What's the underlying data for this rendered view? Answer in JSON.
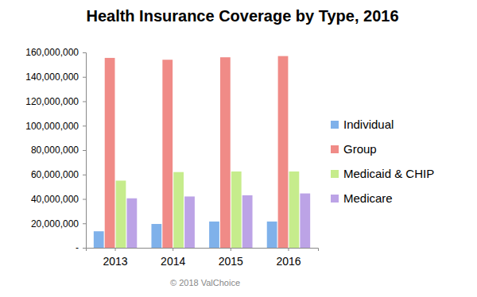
{
  "chart_data": {
    "type": "bar",
    "title": "Health Insurance Coverage by Type, 2016",
    "categories": [
      "2013",
      "2014",
      "2015",
      "2016"
    ],
    "series": [
      {
        "name": "Individual",
        "color": "#7fb1ea",
        "values": [
          13500000,
          19500000,
          21500000,
          21500000
        ]
      },
      {
        "name": "Group",
        "color": "#f08b87",
        "values": [
          155500000,
          154000000,
          156000000,
          157000000
        ]
      },
      {
        "name": "Medicaid & CHIP",
        "color": "#c6ec8c",
        "values": [
          55000000,
          62000000,
          62500000,
          62500000
        ]
      },
      {
        "name": "Medicare",
        "color": "#bca3e6",
        "values": [
          40500000,
          42000000,
          43000000,
          44500000
        ]
      }
    ],
    "ylim": [
      0,
      160000000
    ],
    "yticks": [
      {
        "value": 0,
        "label": "-"
      },
      {
        "value": 20000000,
        "label": "20,000,000"
      },
      {
        "value": 40000000,
        "label": "40,000,000"
      },
      {
        "value": 60000000,
        "label": "60,000,000"
      },
      {
        "value": 80000000,
        "label": "80,000,000"
      },
      {
        "value": 100000000,
        "label": "100,000,000"
      },
      {
        "value": 120000000,
        "label": "120,000,000"
      },
      {
        "value": 140000000,
        "label": "140,000,000"
      },
      {
        "value": 160000000,
        "label": "160,000,000"
      }
    ],
    "grid": false,
    "legend": "right",
    "annotations": [
      "© 2018 ValChoice"
    ]
  }
}
